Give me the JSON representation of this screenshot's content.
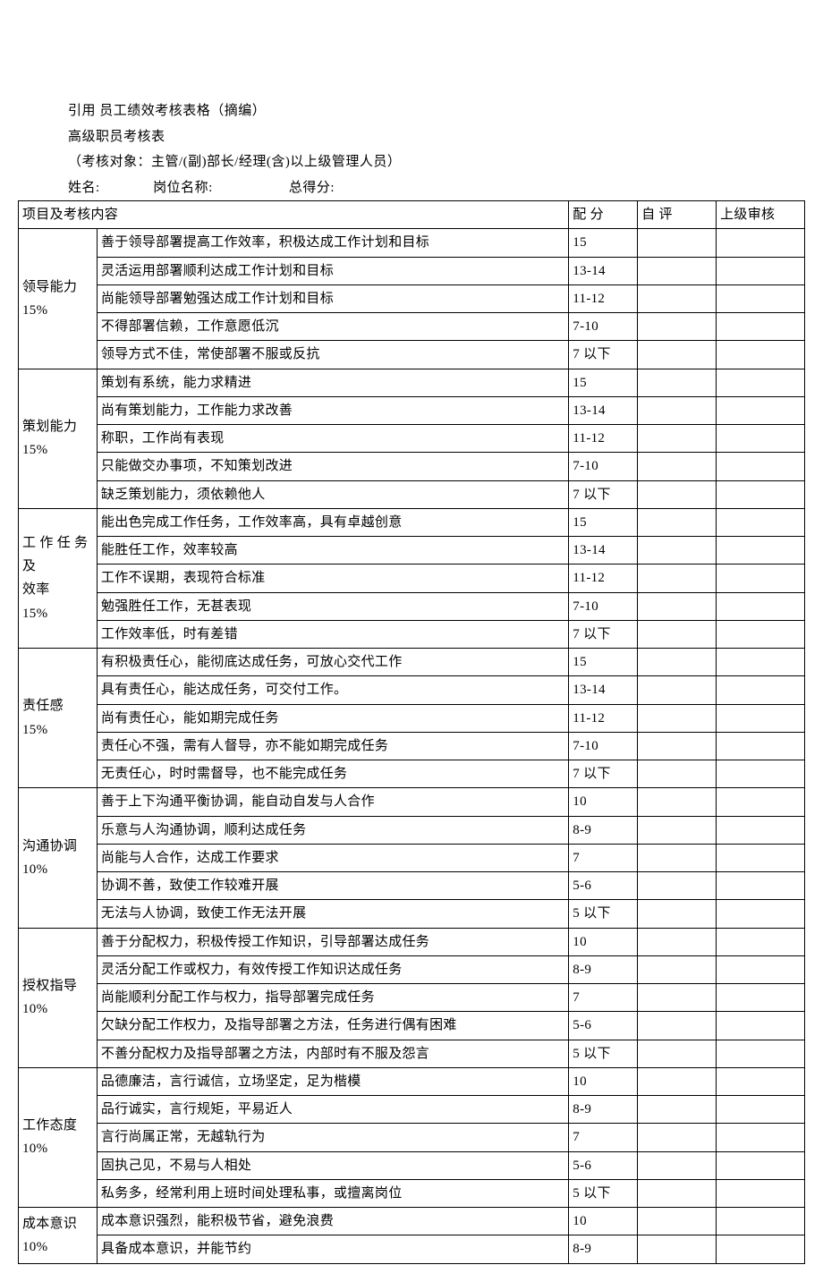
{
  "header": {
    "title_line": "引用 员工绩效考核表格（摘编）",
    "subtitle_line": "高级职员考核表",
    "scope_line": "（考核对象：主管/(副)部长/经理(含)以上级管理人员）",
    "info_name_label": "姓名:",
    "info_position_label": "岗位名称:",
    "info_total_label": "总得分:"
  },
  "table": {
    "columns": {
      "project": "项目及考核内容",
      "score": "配  分",
      "self": "自  评",
      "review": "上级审核"
    },
    "categories": [
      {
        "label_l1": "领导能力",
        "label_l2": "15%",
        "rows": [
          {
            "desc": "善于领导部署提高工作效率，积极达成工作计划和目标",
            "score": "15"
          },
          {
            "desc": "灵活运用部署顺利达成工作计划和目标",
            "score": "13-14"
          },
          {
            "desc": "尚能领导部署勉强达成工作计划和目标",
            "score": "11-12"
          },
          {
            "desc": "不得部署信赖，工作意愿低沉",
            "score": "7-10"
          },
          {
            "desc": "领导方式不佳，常使部署不服或反抗",
            "score": "7 以下"
          }
        ]
      },
      {
        "label_l1": "策划能力",
        "label_l2": "15%",
        "rows": [
          {
            "desc": "策划有系统，能力求精进",
            "score": "15"
          },
          {
            "desc": "尚有策划能力，工作能力求改善",
            "score": "13-14"
          },
          {
            "desc": "称职，工作尚有表现",
            "score": "11-12"
          },
          {
            "desc": "只能做交办事项，不知策划改进",
            "score": "7-10"
          },
          {
            "desc": "缺乏策划能力，须依赖他人",
            "score": "7 以下"
          }
        ]
      },
      {
        "label_l1": "工 作 任 务 及",
        "label_l2": "效率",
        "label_l3": "15%",
        "rows": [
          {
            "desc": "能出色完成工作任务，工作效率高，具有卓越创意",
            "score": "15"
          },
          {
            "desc": "能胜任工作，效率较高",
            "score": "13-14"
          },
          {
            "desc": "工作不误期，表现符合标准",
            "score": "11-12"
          },
          {
            "desc": "勉强胜任工作，无甚表现",
            "score": "7-10"
          },
          {
            "desc": "工作效率低，时有差错",
            "score": "7 以下"
          }
        ]
      },
      {
        "label_l1": "责任感",
        "label_l2": "15%",
        "rows": [
          {
            "desc": "有积极责任心，能彻底达成任务，可放心交代工作",
            "score": "15"
          },
          {
            "desc": "具有责任心，能达成任务，可交付工作。",
            "score": "13-14"
          },
          {
            "desc": "尚有责任心，能如期完成任务",
            "score": "11-12"
          },
          {
            "desc": "责任心不强，需有人督导，亦不能如期完成任务",
            "score": "7-10"
          },
          {
            "desc": "无责任心，时时需督导，也不能完成任务",
            "score": "7 以下"
          }
        ]
      },
      {
        "label_l1": "沟通协调",
        "label_l2": "10%",
        "rows": [
          {
            "desc": "善于上下沟通平衡协调，能自动自发与人合作",
            "score": "10"
          },
          {
            "desc": "乐意与人沟通协调，顺利达成任务",
            "score": "8-9"
          },
          {
            "desc": "尚能与人合作，达成工作要求",
            "score": "7"
          },
          {
            "desc": "协调不善，致使工作较难开展",
            "score": "5-6"
          },
          {
            "desc": "无法与人协调，致使工作无法开展",
            "score": "5 以下"
          }
        ]
      },
      {
        "label_l1": "授权指导",
        "label_l2": "10%",
        "rows": [
          {
            "desc": "善于分配权力，积极传授工作知识，引导部署达成任务",
            "score": "10"
          },
          {
            "desc": "灵活分配工作或权力，有效传授工作知识达成任务",
            "score": "8-9"
          },
          {
            "desc": "尚能顺利分配工作与权力，指导部署完成任务",
            "score": "7"
          },
          {
            "desc": "欠缺分配工作权力，及指导部署之方法，任务进行偶有困难",
            "score": "5-6"
          },
          {
            "desc": "不善分配权力及指导部署之方法，内部时有不服及怨言",
            "score": "5 以下"
          }
        ]
      },
      {
        "label_l1": "工作态度",
        "label_l2": "10%",
        "rows": [
          {
            "desc": "品德廉洁，言行诚信，立场坚定，足为楷模",
            "score": "10"
          },
          {
            "desc": "品行诚实，言行规矩，平易近人",
            "score": "8-9"
          },
          {
            "desc": "言行尚属正常，无越轨行为",
            "score": "7"
          },
          {
            "desc": "固执己见，不易与人相处",
            "score": "5-6"
          },
          {
            "desc": "私务多，经常利用上班时间处理私事，或擅离岗位",
            "score": "5 以下"
          }
        ]
      },
      {
        "label_l1": "成本意识",
        "label_l2": "10%",
        "rows": [
          {
            "desc": "成本意识强烈，能积极节省，避免浪费",
            "score": "10"
          },
          {
            "desc": "具备成本意识，并能节约",
            "score": "8-9"
          }
        ]
      }
    ]
  }
}
